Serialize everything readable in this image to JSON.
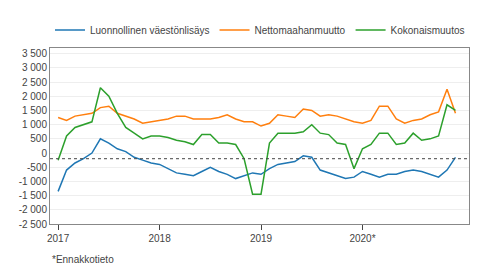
{
  "chart_data": {
    "type": "line",
    "footnote": "*Ennakkotieto",
    "x": [
      2017,
      2017.0833333333333,
      2017.1666666666667,
      2017.25,
      2017.3333333333333,
      2017.4166666666667,
      2017.5,
      2017.5833333333333,
      2017.6666666666667,
      2017.75,
      2017.8333333333333,
      2017.9166666666667,
      2018,
      2018.0833333333333,
      2018.1666666666667,
      2018.25,
      2018.3333333333333,
      2018.4166666666667,
      2018.5,
      2018.5833333333333,
      2018.6666666666667,
      2018.75,
      2018.8333333333333,
      2018.9166666666667,
      2019,
      2019.0833333333333,
      2019.1666666666667,
      2019.25,
      2019.3333333333333,
      2019.4166666666667,
      2019.5,
      2019.5833333333333,
      2019.6666666666667,
      2019.75,
      2019.8333333333333,
      2019.9166666666667,
      2020,
      2020.0833333333333,
      2020.1666666666667,
      2020.25,
      2020.3333333333333,
      2020.4166666666667,
      2020.5,
      2020.5833333333333,
      2020.6666666666667,
      2020.75,
      2020.8333333333333,
      2020.9166666666667
    ],
    "series": [
      {
        "name": "Luonnollinen väestönlisäys",
        "values": [
          -1350,
          -600,
          -350,
          -200,
          0,
          500,
          350,
          150,
          50,
          -150,
          -250,
          -350,
          -400,
          -550,
          -700,
          -750,
          -800,
          -650,
          -500,
          -650,
          -750,
          -900,
          -800,
          -700,
          -750,
          -550,
          -400,
          -350,
          -300,
          -100,
          -150,
          -600,
          -700,
          -800,
          -900,
          -850,
          -650,
          -750,
          -850,
          -750,
          -750,
          -650,
          -600,
          -650,
          -750,
          -850,
          -600,
          -150
        ]
      },
      {
        "name": "Nettomaahanmuutto",
        "values": [
          1250,
          1150,
          1300,
          1350,
          1400,
          1600,
          1650,
          1400,
          1300,
          1200,
          1050,
          1100,
          1150,
          1200,
          1300,
          1300,
          1200,
          1200,
          1200,
          1250,
          1350,
          1200,
          1100,
          1100,
          950,
          1050,
          1350,
          1300,
          1250,
          1550,
          1500,
          1300,
          1350,
          1300,
          1200,
          1100,
          1050,
          1150,
          1650,
          1650,
          1200,
          1050,
          1150,
          1200,
          1350,
          1450,
          2250,
          1400
        ]
      },
      {
        "name": "Kokonaismuutos",
        "values": [
          -250,
          600,
          900,
          1000,
          1100,
          2300,
          2000,
          1400,
          900,
          700,
          500,
          600,
          600,
          550,
          450,
          400,
          300,
          650,
          650,
          350,
          350,
          300,
          -200,
          -1450,
          -1450,
          350,
          700,
          700,
          700,
          750,
          1000,
          700,
          650,
          350,
          300,
          -550,
          150,
          300,
          700,
          700,
          300,
          350,
          700,
          450,
          500,
          600,
          1700,
          1500
        ]
      }
    ],
    "hline": {
      "y": -200,
      "line_style": "dotted"
    },
    "xlim": [
      2016.92,
      2021.05
    ],
    "xticks": [
      2017,
      2018,
      2019,
      {
        "value": 2020,
        "label": "2020*"
      }
    ],
    "ylim": [
      -2500,
      3700
    ],
    "yticks": [
      {
        "value": -2500,
        "label": "-2 500"
      },
      {
        "value": -2000,
        "label": "-2 000"
      },
      {
        "value": -1500,
        "label": "-1 500"
      },
      {
        "value": -1000,
        "label": "-1 000"
      },
      -500,
      0,
      500,
      {
        "value": 1000,
        "label": "1 000"
      },
      {
        "value": 1500,
        "label": "1 500"
      },
      {
        "value": 2000,
        "label": "2 000"
      },
      {
        "value": 2500,
        "label": "2 500"
      },
      {
        "value": 3000,
        "label": "3 000"
      },
      {
        "value": 3500,
        "label": "3 500"
      }
    ],
    "grid": "y",
    "legend": "upper left"
  }
}
